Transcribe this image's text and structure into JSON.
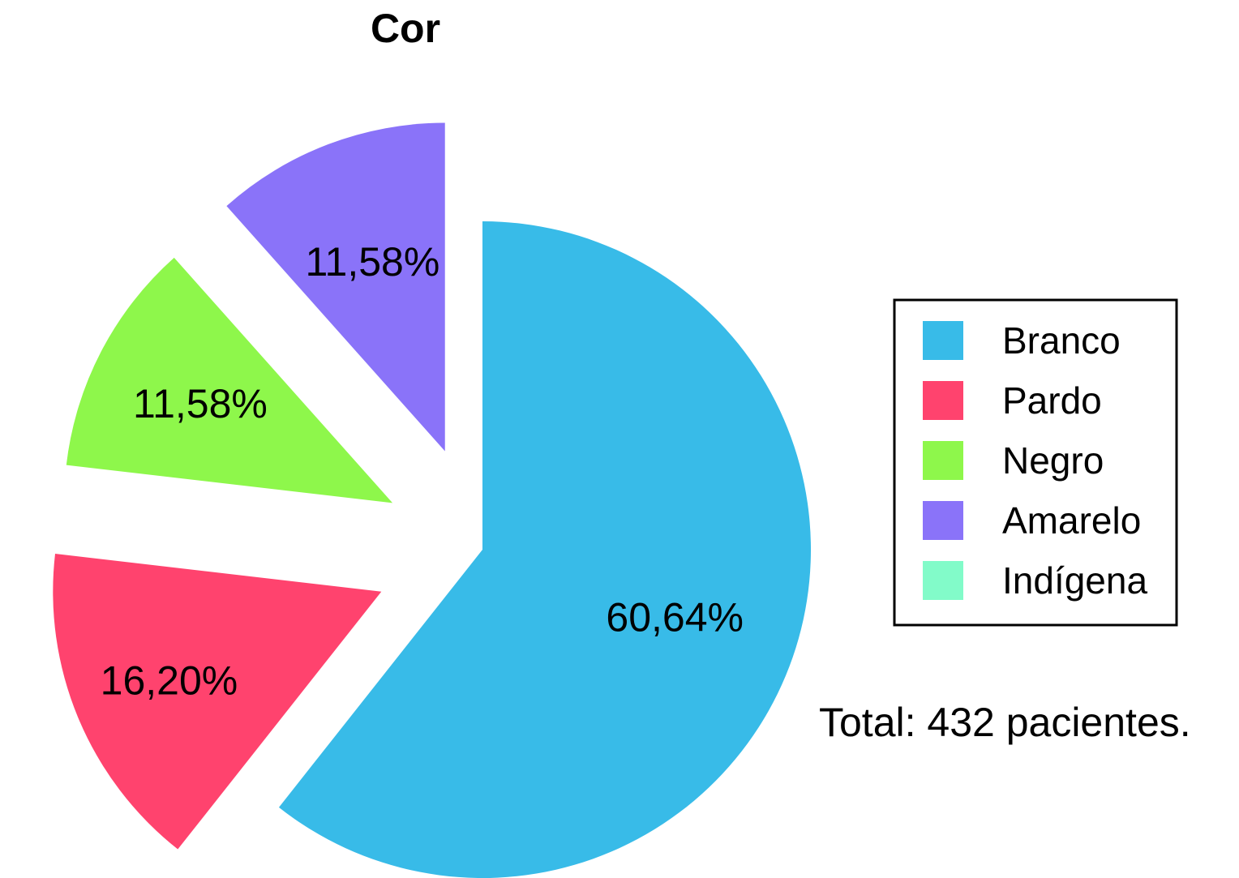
{
  "chart_data": {
    "type": "pie",
    "title": "Cor",
    "categories": [
      "Branco",
      "Pardo",
      "Negro",
      "Amarelo",
      "Indígena"
    ],
    "values": [
      60.64,
      16.2,
      11.58,
      11.58,
      0.0
    ],
    "labels": [
      "60,64%",
      "16,20%",
      "11,58%",
      "11,58%",
      ""
    ],
    "colors": [
      "#38bbe8",
      "#ff436e",
      "#8ef74b",
      "#8a73f9",
      "#82fbc9"
    ],
    "legend": {
      "position": "right",
      "items": [
        "Branco",
        "Pardo",
        "Negro",
        "Amarelo",
        "Indígena"
      ]
    },
    "annotation": "Total: 432 pacientes."
  }
}
